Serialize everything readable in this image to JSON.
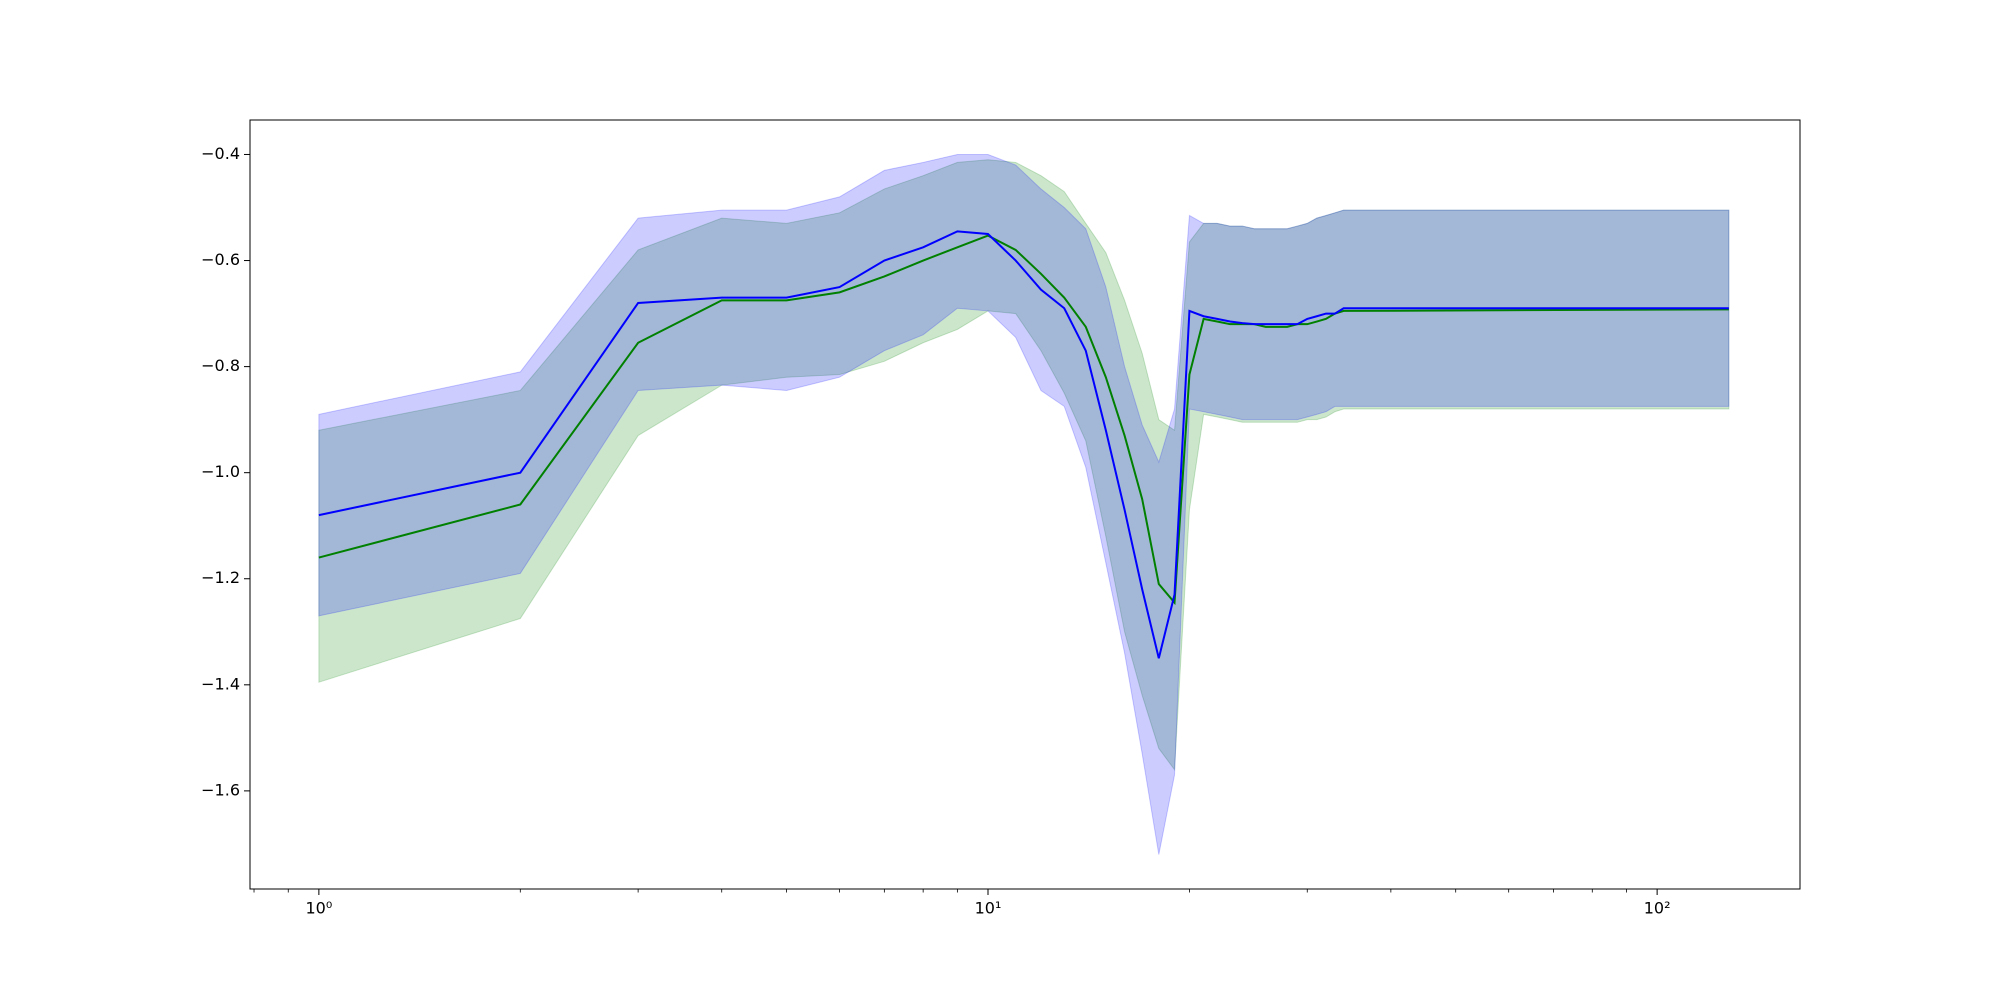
{
  "chart_data": {
    "type": "line",
    "xscale": "log",
    "x": [
      1,
      2,
      3,
      4,
      5,
      6,
      7,
      8,
      9,
      10,
      11,
      12,
      13,
      14,
      15,
      16,
      17,
      18,
      19,
      20,
      21,
      22,
      23,
      24,
      25,
      26,
      27,
      28,
      29,
      30,
      31,
      32,
      33,
      34,
      128
    ],
    "series": [
      {
        "color": "#008000",
        "band_color": "#008000",
        "values": [
          -1.16,
          -1.06,
          -0.755,
          -0.675,
          -0.675,
          -0.66,
          -0.63,
          -0.6,
          -0.575,
          -0.553,
          -0.58,
          -0.625,
          -0.67,
          -0.725,
          -0.82,
          -0.93,
          -1.05,
          -1.21,
          -1.245,
          -0.815,
          -0.71,
          -0.715,
          -0.72,
          -0.72,
          -0.72,
          -0.725,
          -0.725,
          -0.725,
          -0.72,
          -0.72,
          -0.715,
          -0.71,
          -0.7,
          -0.695,
          -0.692
        ],
        "upper": [
          -0.92,
          -0.845,
          -0.58,
          -0.52,
          -0.53,
          -0.51,
          -0.465,
          -0.44,
          -0.415,
          -0.41,
          -0.415,
          -0.44,
          -0.47,
          -0.53,
          -0.585,
          -0.675,
          -0.775,
          -0.9,
          -0.92,
          -0.565,
          -0.53,
          -0.53,
          -0.535,
          -0.535,
          -0.54,
          -0.54,
          -0.54,
          -0.54,
          -0.535,
          -0.53,
          -0.52,
          -0.515,
          -0.51,
          -0.505,
          -0.505
        ],
        "lower": [
          -1.395,
          -1.275,
          -0.93,
          -0.835,
          -0.82,
          -0.815,
          -0.79,
          -0.755,
          -0.73,
          -0.695,
          -0.7,
          -0.77,
          -0.85,
          -0.94,
          -1.12,
          -1.3,
          -1.42,
          -1.52,
          -1.56,
          -1.07,
          -0.89,
          -0.895,
          -0.9,
          -0.905,
          -0.905,
          -0.905,
          -0.905,
          -0.905,
          -0.905,
          -0.9,
          -0.9,
          -0.895,
          -0.885,
          -0.88,
          -0.88
        ]
      },
      {
        "color": "#0000ff",
        "band_color": "#0000ff",
        "values": [
          -1.08,
          -1.0,
          -0.68,
          -0.67,
          -0.67,
          -0.65,
          -0.6,
          -0.575,
          -0.545,
          -0.55,
          -0.6,
          -0.655,
          -0.69,
          -0.77,
          -0.92,
          -1.07,
          -1.22,
          -1.35,
          -1.23,
          -0.695,
          -0.705,
          -0.71,
          -0.715,
          -0.718,
          -0.72,
          -0.72,
          -0.72,
          -0.72,
          -0.72,
          -0.71,
          -0.705,
          -0.7,
          -0.7,
          -0.69,
          -0.69
        ],
        "upper": [
          -0.89,
          -0.81,
          -0.52,
          -0.505,
          -0.505,
          -0.48,
          -0.43,
          -0.415,
          -0.4,
          -0.4,
          -0.42,
          -0.465,
          -0.5,
          -0.54,
          -0.65,
          -0.8,
          -0.91,
          -0.98,
          -0.88,
          -0.515,
          -0.53,
          -0.53,
          -0.535,
          -0.535,
          -0.54,
          -0.54,
          -0.54,
          -0.54,
          -0.535,
          -0.53,
          -0.52,
          -0.515,
          -0.51,
          -0.505,
          -0.505
        ],
        "lower": [
          -1.27,
          -1.19,
          -0.845,
          -0.835,
          -0.845,
          -0.82,
          -0.77,
          -0.74,
          -0.69,
          -0.695,
          -0.745,
          -0.845,
          -0.875,
          -0.99,
          -1.17,
          -1.34,
          -1.53,
          -1.72,
          -1.57,
          -0.88,
          -0.885,
          -0.89,
          -0.895,
          -0.9,
          -0.9,
          -0.9,
          -0.9,
          -0.9,
          -0.9,
          -0.895,
          -0.89,
          -0.885,
          -0.875,
          -0.875,
          -0.875
        ]
      }
    ],
    "band_opacity": 0.2,
    "xlim": [
      0.789,
      163.5
    ],
    "ylim": [
      -1.785,
      -0.335
    ],
    "xticks": [
      {
        "value": 1,
        "label": "10⁰"
      },
      {
        "value": 10,
        "label": "10¹"
      },
      {
        "value": 100,
        "label": "10²"
      }
    ],
    "xminorticks": [
      0.8,
      0.9,
      2,
      3,
      4,
      5,
      6,
      7,
      8,
      9,
      20,
      30,
      40,
      50,
      60,
      70,
      80,
      90
    ],
    "yticks": [
      {
        "value": -1.6,
        "label": "−1.6"
      },
      {
        "value": -1.4,
        "label": "−1.4"
      },
      {
        "value": -1.2,
        "label": "−1.2"
      },
      {
        "value": -1.0,
        "label": "−1.0"
      },
      {
        "value": -0.8,
        "label": "−0.8"
      },
      {
        "value": -0.6,
        "label": "−0.6"
      },
      {
        "value": -0.4,
        "label": "−0.4"
      }
    ],
    "grid": false
  }
}
